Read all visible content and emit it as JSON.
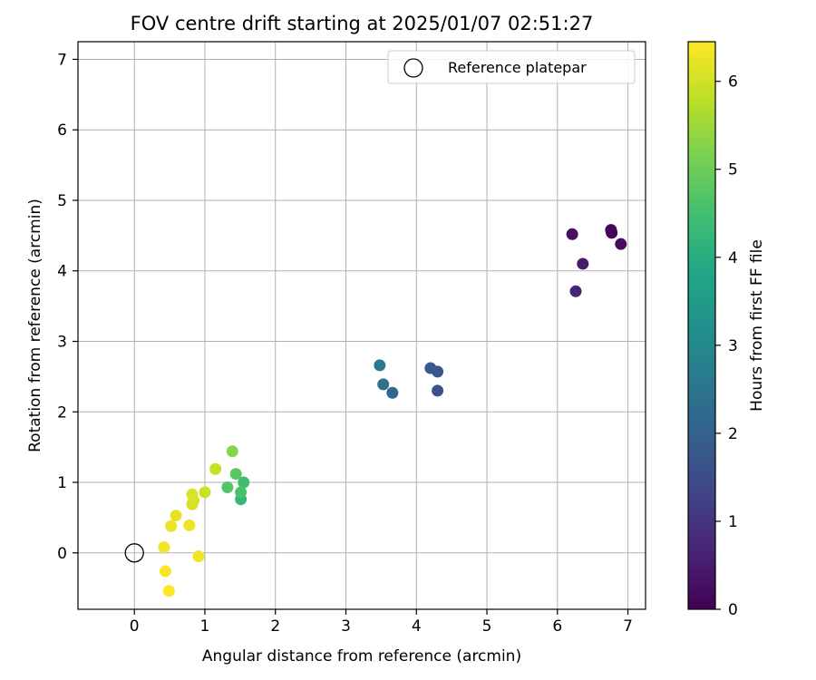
{
  "chart_data": {
    "type": "scatter",
    "title": "FOV centre drift starting at 2025/01/07 02:51:27",
    "xlabel": "Angular distance from reference (arcmin)",
    "ylabel": "Rotation from reference (arcmin)",
    "xlim": [
      -0.8,
      7.25
    ],
    "ylim": [
      -0.8,
      7.25
    ],
    "xticks": [
      0,
      1,
      2,
      3,
      4,
      5,
      6,
      7
    ],
    "yticks": [
      0,
      1,
      2,
      3,
      4,
      5,
      6,
      7
    ],
    "grid": true,
    "legend": {
      "placement": "upper-right",
      "entries": [
        "Reference platepar"
      ]
    },
    "reference": {
      "name": "Reference platepar",
      "x": 0,
      "y": 0,
      "marker": "hollow-circle"
    },
    "colorbar": {
      "label": "Hours from first FF file",
      "colormap": "viridis",
      "range": [
        0,
        6.45
      ],
      "ticks": [
        0,
        1,
        2,
        3,
        4,
        5,
        6
      ]
    },
    "points": [
      {
        "x": 6.76,
        "y": 4.58,
        "t": 0.05
      },
      {
        "x": 6.77,
        "y": 4.54,
        "t": 0.1
      },
      {
        "x": 6.9,
        "y": 4.38,
        "t": 0.2
      },
      {
        "x": 6.21,
        "y": 4.52,
        "t": 0.3
      },
      {
        "x": 6.36,
        "y": 4.1,
        "t": 0.5
      },
      {
        "x": 6.26,
        "y": 3.71,
        "t": 0.65
      },
      {
        "x": 4.3,
        "y": 2.3,
        "t": 1.6
      },
      {
        "x": 4.3,
        "y": 2.57,
        "t": 1.7
      },
      {
        "x": 4.2,
        "y": 2.62,
        "t": 1.8
      },
      {
        "x": 3.66,
        "y": 2.27,
        "t": 2.2
      },
      {
        "x": 3.53,
        "y": 2.39,
        "t": 2.4
      },
      {
        "x": 3.48,
        "y": 2.66,
        "t": 2.6
      },
      {
        "x": 1.51,
        "y": 0.76,
        "t": 4.3
      },
      {
        "x": 1.55,
        "y": 1.0,
        "t": 4.45
      },
      {
        "x": 1.51,
        "y": 0.86,
        "t": 4.6
      },
      {
        "x": 1.32,
        "y": 0.93,
        "t": 4.7
      },
      {
        "x": 1.44,
        "y": 1.12,
        "t": 4.8
      },
      {
        "x": 1.39,
        "y": 1.44,
        "t": 5.3
      },
      {
        "x": 1.15,
        "y": 1.19,
        "t": 5.9
      },
      {
        "x": 1.0,
        "y": 0.86,
        "t": 5.95
      },
      {
        "x": 0.82,
        "y": 0.69,
        "t": 6.0
      },
      {
        "x": 0.84,
        "y": 0.74,
        "t": 6.05
      },
      {
        "x": 0.82,
        "y": 0.83,
        "t": 6.1
      },
      {
        "x": 0.59,
        "y": 0.53,
        "t": 6.2
      },
      {
        "x": 0.52,
        "y": 0.38,
        "t": 6.25
      },
      {
        "x": 0.78,
        "y": 0.39,
        "t": 6.3
      },
      {
        "x": 0.91,
        "y": -0.05,
        "t": 6.3
      },
      {
        "x": 0.42,
        "y": 0.08,
        "t": 6.35
      },
      {
        "x": 0.44,
        "y": -0.26,
        "t": 6.4
      },
      {
        "x": 0.49,
        "y": -0.54,
        "t": 6.45
      }
    ]
  }
}
